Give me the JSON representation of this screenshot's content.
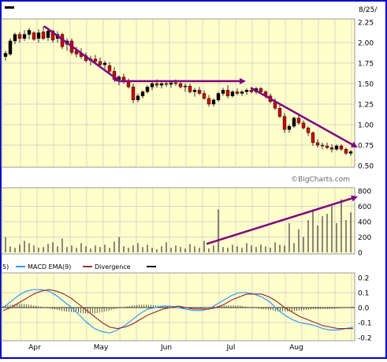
{
  "chart_data": [
    {
      "type": "candlestick",
      "panel": "price",
      "header_date": "8/25/",
      "watermark": "©BigCharts.com",
      "y_ticks": [
        "2.25",
        "2.00",
        "1.75",
        "1.50",
        "1.25",
        "1.00",
        "0.75",
        "0.50"
      ],
      "ylim": [
        0.5,
        2.25
      ],
      "colors": {
        "down": "#cc0000",
        "up": "#000000",
        "annotation_arrow": "#800080"
      },
      "trend_arrows": [
        {
          "from": [
            "Apr",
            2.2
          ],
          "to": [
            "May",
            1.53
          ]
        },
        {
          "from": [
            "May",
            1.53
          ],
          "to": [
            "Jul",
            1.53
          ]
        },
        {
          "from": [
            "Jul",
            1.45
          ],
          "to": [
            "Aug",
            0.73
          ]
        }
      ],
      "series": [
        {
          "name": "",
          "values": [
            [
              1.83,
              1.9,
              1.78,
              1.87
            ],
            [
              1.86,
              2.05,
              1.84,
              2.02
            ],
            [
              2.02,
              2.12,
              1.98,
              2.1
            ],
            [
              2.1,
              2.13,
              2.0,
              2.05
            ],
            [
              2.05,
              2.15,
              2.02,
              2.1
            ],
            [
              2.1,
              2.18,
              2.04,
              2.15
            ],
            [
              2.12,
              2.14,
              2.02,
              2.04
            ],
            [
              2.05,
              2.16,
              2.0,
              2.12
            ],
            [
              2.13,
              2.2,
              2.03,
              2.05
            ],
            [
              2.06,
              2.18,
              2.02,
              2.14
            ],
            [
              2.14,
              2.16,
              2.0,
              2.03
            ],
            [
              2.05,
              2.14,
              2.0,
              2.1
            ],
            [
              2.1,
              2.12,
              1.92,
              1.95
            ],
            [
              1.98,
              2.05,
              1.9,
              2.02
            ],
            [
              2.02,
              2.05,
              1.85,
              1.88
            ],
            [
              1.9,
              1.95,
              1.82,
              1.86
            ],
            [
              1.87,
              1.93,
              1.8,
              1.83
            ],
            [
              1.84,
              1.88,
              1.76,
              1.78
            ],
            [
              1.78,
              1.84,
              1.72,
              1.8
            ],
            [
              1.8,
              1.85,
              1.75,
              1.77
            ],
            [
              1.77,
              1.82,
              1.7,
              1.73
            ],
            [
              1.73,
              1.78,
              1.68,
              1.75
            ],
            [
              1.72,
              1.76,
              1.62,
              1.65
            ],
            [
              1.65,
              1.7,
              1.52,
              1.55
            ],
            [
              1.55,
              1.6,
              1.48,
              1.58
            ],
            [
              1.58,
              1.62,
              1.5,
              1.52
            ],
            [
              1.52,
              1.56,
              1.44,
              1.46
            ],
            [
              1.46,
              1.5,
              1.26,
              1.3
            ],
            [
              1.3,
              1.38,
              1.27,
              1.35
            ],
            [
              1.35,
              1.42,
              1.32,
              1.4
            ],
            [
              1.4,
              1.48,
              1.38,
              1.46
            ],
            [
              1.46,
              1.53,
              1.42,
              1.5
            ],
            [
              1.5,
              1.55,
              1.45,
              1.48
            ],
            [
              1.48,
              1.53,
              1.44,
              1.5
            ],
            [
              1.5,
              1.54,
              1.46,
              1.49
            ],
            [
              1.49,
              1.52,
              1.45,
              1.51
            ],
            [
              1.51,
              1.55,
              1.47,
              1.5
            ],
            [
              1.5,
              1.53,
              1.44,
              1.46
            ],
            [
              1.46,
              1.5,
              1.4,
              1.47
            ],
            [
              1.47,
              1.5,
              1.38,
              1.4
            ],
            [
              1.4,
              1.45,
              1.34,
              1.42
            ],
            [
              1.42,
              1.46,
              1.36,
              1.38
            ],
            [
              1.38,
              1.42,
              1.3,
              1.32
            ],
            [
              1.32,
              1.36,
              1.22,
              1.25
            ],
            [
              1.25,
              1.32,
              1.22,
              1.3
            ],
            [
              1.3,
              1.4,
              1.28,
              1.38
            ],
            [
              1.38,
              1.45,
              1.35,
              1.42
            ],
            [
              1.42,
              1.48,
              1.32,
              1.35
            ],
            [
              1.35,
              1.42,
              1.33,
              1.4
            ],
            [
              1.4,
              1.44,
              1.36,
              1.38
            ],
            [
              1.38,
              1.42,
              1.35,
              1.4
            ],
            [
              1.4,
              1.44,
              1.36,
              1.42
            ],
            [
              1.42,
              1.45,
              1.38,
              1.4
            ],
            [
              1.4,
              1.46,
              1.37,
              1.44
            ],
            [
              1.44,
              1.46,
              1.38,
              1.4
            ],
            [
              1.4,
              1.42,
              1.32,
              1.35
            ],
            [
              1.35,
              1.38,
              1.26,
              1.28
            ],
            [
              1.28,
              1.32,
              1.18,
              1.2
            ],
            [
              1.2,
              1.24,
              1.08,
              1.1
            ],
            [
              1.1,
              1.14,
              0.9,
              0.94
            ],
            [
              0.94,
              1.0,
              0.9,
              0.98
            ],
            [
              0.98,
              1.1,
              0.96,
              1.08
            ],
            [
              1.08,
              1.12,
              1.0,
              1.02
            ],
            [
              1.02,
              1.05,
              0.94,
              0.96
            ],
            [
              0.96,
              0.98,
              0.86,
              0.9
            ],
            [
              0.9,
              0.92,
              0.74,
              0.78
            ],
            [
              0.78,
              0.82,
              0.72,
              0.75
            ],
            [
              0.75,
              0.78,
              0.7,
              0.74
            ],
            [
              0.74,
              0.78,
              0.7,
              0.72
            ],
            [
              0.72,
              0.76,
              0.66,
              0.7
            ],
            [
              0.7,
              0.76,
              0.68,
              0.74
            ],
            [
              0.74,
              0.76,
              0.68,
              0.7
            ],
            [
              0.7,
              0.72,
              0.63,
              0.65
            ],
            [
              0.65,
              0.69,
              0.62,
              0.67
            ]
          ]
        }
      ]
    },
    {
      "type": "bar",
      "panel": "volume",
      "y_ticks": [
        "800",
        "600",
        "400",
        "200",
        "0"
      ],
      "ylim": [
        0,
        800
      ],
      "colors": {
        "bar": "#555555",
        "annotation_arrow": "#800080"
      },
      "trend_arrows": [
        {
          "from": [
            "Jun",
            110
          ],
          "to": [
            "Aug",
            720
          ]
        }
      ],
      "values": [
        200,
        80,
        60,
        100,
        150,
        120,
        90,
        60,
        70,
        110,
        130,
        80,
        180,
        70,
        90,
        60,
        120,
        80,
        50,
        90,
        70,
        100,
        60,
        140,
        200,
        80,
        60,
        90,
        120,
        70,
        100,
        60,
        40,
        80,
        130,
        60,
        90,
        70,
        50,
        110,
        80,
        60,
        150,
        50,
        90,
        560,
        70,
        60,
        100,
        80,
        60,
        120,
        90,
        70,
        100,
        80,
        60,
        130,
        100,
        90,
        380,
        120,
        300,
        200,
        420,
        560,
        350,
        470,
        500,
        600,
        380,
        690,
        420,
        520
      ]
    },
    {
      "type": "line",
      "panel": "macd",
      "legend": [
        {
          "label": "MACD EMA(9)",
          "color": "#3399ff"
        },
        {
          "label": "Divergence",
          "color": "#993333"
        },
        {
          "label": "",
          "color": "#000000"
        }
      ],
      "legend_fragment": "5)",
      "y_ticks": [
        "0.2",
        "0.1",
        "0.0",
        "-0.1",
        "-0.2"
      ],
      "ylim": [
        -0.2,
        0.2
      ],
      "x_labels": [
        "Apr",
        "May",
        "Jun",
        "Jul",
        "Aug"
      ],
      "series": [
        {
          "name": "MACD",
          "values": [
            0.0,
            0.04,
            0.08,
            0.11,
            0.12,
            0.12,
            0.11,
            0.08,
            0.04,
            0.0,
            -0.05,
            -0.1,
            -0.14,
            -0.16,
            -0.17,
            -0.15,
            -0.12,
            -0.08,
            -0.04,
            -0.01,
            0.0,
            0.01,
            0.01,
            0.0,
            -0.01,
            -0.02,
            -0.02,
            -0.01,
            0.02,
            0.05,
            0.08,
            0.1,
            0.1,
            0.09,
            0.07,
            0.04,
            -0.01,
            -0.05,
            -0.08,
            -0.1,
            -0.11,
            -0.12,
            -0.14,
            -0.15,
            -0.15,
            -0.14,
            -0.13
          ]
        },
        {
          "name": "EMA(9)",
          "values": [
            -0.02,
            0.0,
            0.03,
            0.06,
            0.09,
            0.11,
            0.12,
            0.11,
            0.09,
            0.06,
            0.02,
            -0.02,
            -0.06,
            -0.1,
            -0.13,
            -0.14,
            -0.13,
            -0.11,
            -0.08,
            -0.05,
            -0.03,
            -0.01,
            0.0,
            0.01,
            0.0,
            -0.01,
            -0.01,
            -0.01,
            0.0,
            0.02,
            0.05,
            0.07,
            0.09,
            0.09,
            0.09,
            0.07,
            0.04,
            0.0,
            -0.03,
            -0.06,
            -0.08,
            -0.1,
            -0.12,
            -0.13,
            -0.14,
            -0.14,
            -0.14
          ]
        },
        {
          "name": "Divergence",
          "values": [
            0.02,
            0.04,
            0.05,
            0.05,
            0.03,
            0.01,
            -0.01,
            -0.03,
            -0.05,
            -0.06,
            -0.07,
            -0.08,
            -0.08,
            -0.06,
            -0.04,
            -0.01,
            0.01,
            0.03,
            0.04,
            0.04,
            0.03,
            0.02,
            0.01,
            -0.01,
            -0.01,
            -0.01,
            -0.01,
            0.0,
            0.02,
            0.03,
            0.03,
            0.03,
            0.01,
            0.0,
            -0.02,
            -0.03,
            -0.05,
            -0.05,
            -0.05,
            -0.04,
            -0.03,
            -0.02,
            -0.02,
            -0.02,
            -0.01,
            0.0,
            0.01
          ]
        }
      ]
    }
  ]
}
